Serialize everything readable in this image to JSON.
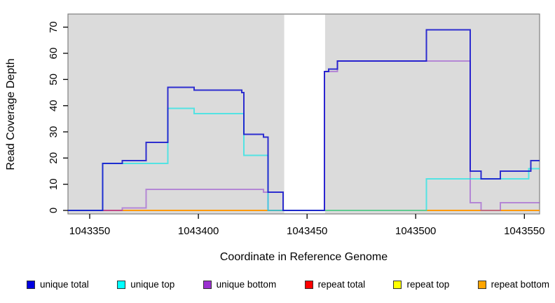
{
  "chart_data": {
    "type": "line",
    "subtype": "step-coverage-plot",
    "title": "",
    "xlabel": "Coordinate in Reference Genome",
    "ylabel": "Read Coverage Depth",
    "x_ticks": [
      1043350,
      1043400,
      1043450,
      1043500,
      1043550
    ],
    "y_ticks": [
      0,
      10,
      20,
      30,
      40,
      50,
      60,
      70
    ],
    "x_domain": [
      1043340,
      1043557
    ],
    "y_domain": [
      0,
      75
    ],
    "grid": "off",
    "panel_bg": "#DBDBDB",
    "panel_border": "#808080",
    "axis_color": "#000000",
    "masked_region": {
      "from": 1043439.5,
      "to": 1043458.3,
      "color": "#FFFFFF"
    },
    "series": [
      {
        "name": "repeat top",
        "line_color": "#E8E84A",
        "opacity": 0.9,
        "points": [
          [
            1043340,
            0
          ]
        ]
      },
      {
        "name": "repeat total",
        "line_color": "#FF0000",
        "opacity": 0.7,
        "points": [
          [
            1043356,
            0
          ]
        ]
      },
      {
        "name": "repeat bottom",
        "line_color": "#FF9E00",
        "opacity": 0.95,
        "points": [
          [
            1043365,
            0
          ]
        ]
      },
      {
        "name": "unique bottom",
        "line_color": "#9A4FD0",
        "opacity": 0.6,
        "points": [
          [
            1043340,
            0
          ],
          [
            1043365,
            1
          ],
          [
            1043376,
            8
          ],
          [
            1043430,
            7
          ],
          [
            1043432,
            0
          ],
          [
            1043458,
            53
          ],
          [
            1043464,
            57
          ],
          [
            1043525,
            3
          ],
          [
            1043530,
            0
          ],
          [
            1043539,
            3
          ]
        ]
      },
      {
        "name": "unique top",
        "line_color": "#00E8E8",
        "opacity": 0.62,
        "points": [
          [
            1043340,
            0
          ],
          [
            1043356,
            18
          ],
          [
            1043386,
            39
          ],
          [
            1043398,
            37
          ],
          [
            1043421,
            21
          ],
          [
            1043432,
            0
          ],
          [
            1043505,
            12
          ],
          [
            1043552,
            16
          ]
        ]
      },
      {
        "name": "unique total",
        "line_color": "#1515CD",
        "opacity": 0.88,
        "points": [
          [
            1043340,
            0
          ],
          [
            1043356,
            18
          ],
          [
            1043365,
            19
          ],
          [
            1043376,
            26
          ],
          [
            1043386,
            47
          ],
          [
            1043398,
            46
          ],
          [
            1043420,
            45
          ],
          [
            1043421,
            29
          ],
          [
            1043430,
            28
          ],
          [
            1043432,
            7
          ],
          [
            1043439,
            0
          ],
          [
            1043458,
            53
          ],
          [
            1043460,
            54
          ],
          [
            1043464,
            57
          ],
          [
            1043505,
            69
          ],
          [
            1043525,
            15
          ],
          [
            1043530,
            12
          ],
          [
            1043539,
            15
          ],
          [
            1043553,
            19
          ]
        ]
      }
    ],
    "legend": {
      "position": "bottom",
      "items": [
        {
          "label": "unique total",
          "marker_color": "#0000E0"
        },
        {
          "label": "unique top",
          "marker_color": "#00FFFF"
        },
        {
          "label": "unique bottom",
          "marker_color": "#9B30D0"
        },
        {
          "label": "repeat total",
          "marker_color": "#FF0000"
        },
        {
          "label": "repeat top",
          "marker_color": "#FFFF00"
        },
        {
          "label": "repeat bottom",
          "marker_color": "#FFA500"
        }
      ]
    }
  }
}
